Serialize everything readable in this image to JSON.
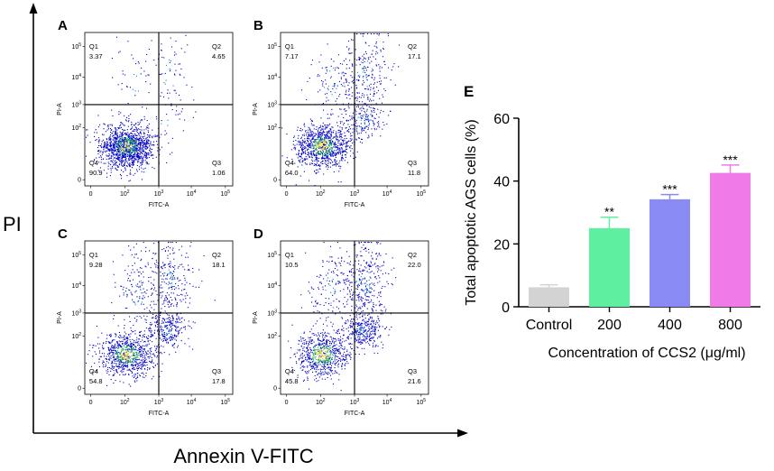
{
  "figure": {
    "outer_y_label": "PI",
    "outer_x_label": "Annexin V-FITC"
  },
  "chart_data": [
    {
      "type": "scatter",
      "panel": "A",
      "title": "A",
      "xlabel": "FITC-A",
      "ylabel": "PI-A",
      "x_ticks": [
        "0",
        "10^2",
        "10^3",
        "10^4",
        "10^5"
      ],
      "y_ticks": [
        "0",
        "10^2",
        "10^3",
        "10^4",
        "10^5"
      ],
      "quadrants": [
        {
          "name": "Q1",
          "value": "3.37"
        },
        {
          "name": "Q2",
          "value": "4.65"
        },
        {
          "name": "Q3",
          "value": "1.06"
        },
        {
          "name": "Q4",
          "value": "90.9"
        }
      ]
    },
    {
      "type": "scatter",
      "panel": "B",
      "title": "B",
      "xlabel": "FITC-A",
      "ylabel": "PI-A",
      "x_ticks": [
        "0",
        "10^2",
        "10^3",
        "10^4",
        "10^5"
      ],
      "y_ticks": [
        "0",
        "10^2",
        "10^3",
        "10^4",
        "10^5"
      ],
      "quadrants": [
        {
          "name": "Q1",
          "value": "7.17"
        },
        {
          "name": "Q2",
          "value": "17.1"
        },
        {
          "name": "Q3",
          "value": "11.8"
        },
        {
          "name": "Q4",
          "value": "64.0"
        }
      ]
    },
    {
      "type": "scatter",
      "panel": "C",
      "title": "C",
      "xlabel": "FITC-A",
      "ylabel": "PI-A",
      "x_ticks": [
        "0",
        "10^2",
        "10^3",
        "10^4",
        "10^5"
      ],
      "y_ticks": [
        "0",
        "10^2",
        "10^3",
        "10^4",
        "10^5"
      ],
      "quadrants": [
        {
          "name": "Q1",
          "value": "9.28"
        },
        {
          "name": "Q2",
          "value": "18.1"
        },
        {
          "name": "Q3",
          "value": "17.8"
        },
        {
          "name": "Q4",
          "value": "54.8"
        }
      ]
    },
    {
      "type": "scatter",
      "panel": "D",
      "title": "D",
      "xlabel": "FITC-A",
      "ylabel": "PI-A",
      "x_ticks": [
        "0",
        "10^2",
        "10^3",
        "10^4",
        "10^5"
      ],
      "y_ticks": [
        "0",
        "10^2",
        "10^3",
        "10^4",
        "10^5"
      ],
      "quadrants": [
        {
          "name": "Q1",
          "value": "10.5"
        },
        {
          "name": "Q2",
          "value": "22.0"
        },
        {
          "name": "Q3",
          "value": "21.6"
        },
        {
          "name": "Q4",
          "value": "45.8"
        }
      ]
    },
    {
      "type": "bar",
      "panel": "E",
      "title": "E",
      "xlabel": "Concentration of CCS2 (μg/ml)",
      "ylabel": "Total apoptotic AGS cells (%)",
      "ylim": [
        0,
        60
      ],
      "yticks": [
        0,
        20,
        40,
        60
      ],
      "categories": [
        "Control",
        "200",
        "400",
        "800"
      ],
      "values": [
        6.2,
        25.0,
        34.2,
        42.6
      ],
      "errors": [
        0.8,
        3.5,
        1.5,
        2.5
      ],
      "significance": [
        "",
        "**",
        "***",
        "***"
      ],
      "colors": [
        "#d3d3d3",
        "#5ef0a0",
        "#8a8af5",
        "#f07ae8"
      ]
    }
  ]
}
